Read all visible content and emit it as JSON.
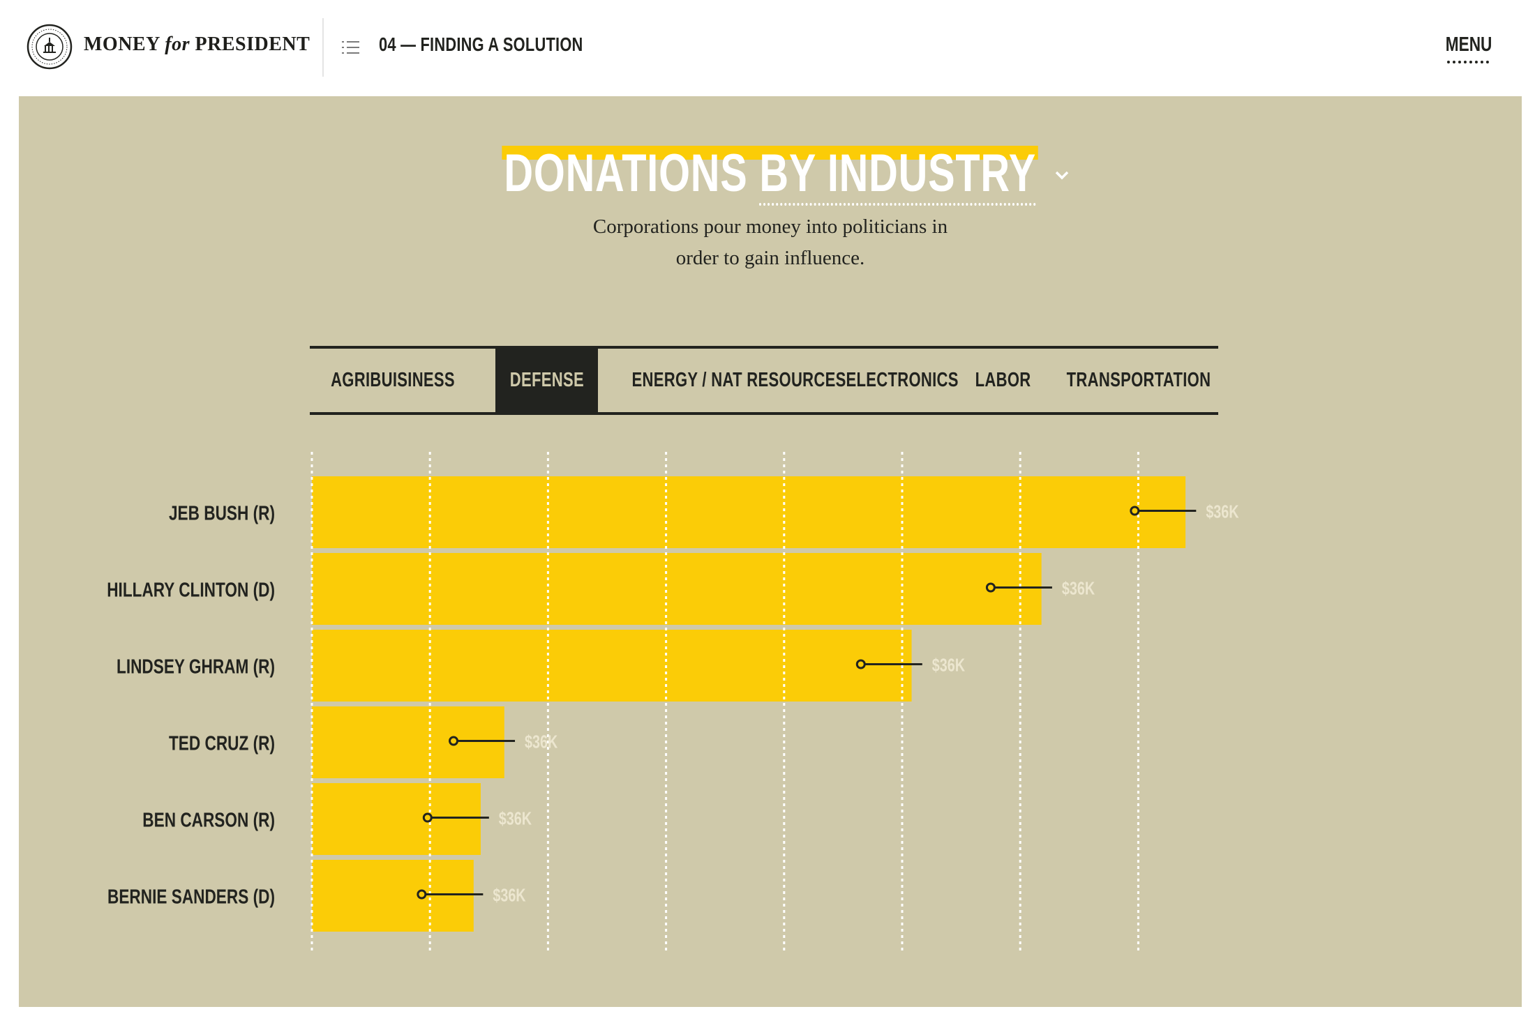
{
  "header": {
    "brand": {
      "money": "MONEY",
      "for": "for",
      "president": "PRESIDENT"
    },
    "section_title": "04 — FINDING A SOLUTION",
    "menu_label": "MENU",
    "icons": {
      "logo": "seal-logo",
      "toc": "list-icon"
    }
  },
  "panel": {
    "title_lead": "DONATIONS",
    "title_picker": "BY INDUSTRY",
    "subtitle_line1": "Corporations pour money into politicians in",
    "subtitle_line2": "order to gain influence."
  },
  "tabs": [
    {
      "label": "AGRIBUISINESS",
      "active": false
    },
    {
      "label": "DEFENSE",
      "active": true
    },
    {
      "label": "ENERGY / NAT RESOURCES",
      "active": false
    },
    {
      "label": "ELECTRONICS",
      "active": false
    },
    {
      "label": "LABOR",
      "active": false
    },
    {
      "label": "TRANSPORTATION",
      "active": false
    }
  ],
  "colors": {
    "panel_bg": "#cfc9aa",
    "bar": "#fbcc07",
    "ink": "#22231f",
    "value_label": "#ece6cf"
  },
  "chart_data": {
    "type": "bar",
    "orientation": "horizontal",
    "categories": [
      "JEB BUSH (R)",
      "HILLARY CLINTON (D)",
      "LINDSEY GHRAM (R)",
      "TED CRUZ (R)",
      "BEN CARSON (R)",
      "BERNIE SANDERS (D)"
    ],
    "values": [
      7.4,
      6.18,
      5.08,
      1.63,
      1.43,
      1.37
    ],
    "markers": [
      6.97,
      5.75,
      4.65,
      1.2,
      0.98,
      0.93
    ],
    "value_labels": [
      "$36K",
      "$36K",
      "$36K",
      "$36K",
      "$36K",
      "$36K"
    ],
    "xlim": [
      0,
      7.4
    ],
    "grid": true,
    "gridlines": 8
  }
}
